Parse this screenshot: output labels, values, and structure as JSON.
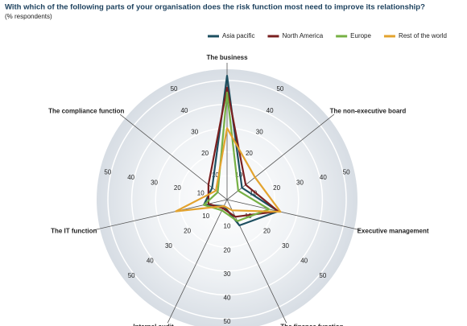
{
  "chart_data": {
    "type": "radar",
    "title": "With which of the following parts of your organisation does the risk function most need to improve its relationship?",
    "subtitle": "(% respondents)",
    "categories": [
      "The business",
      "The non-executive board",
      "Executive management",
      "The finance function",
      "Internal audit",
      "The IT function",
      "The compliance function"
    ],
    "series": [
      {
        "name": "Asia pacific",
        "color": "#1d4f60",
        "values": [
          52,
          8,
          22,
          12,
          3,
          10,
          8
        ]
      },
      {
        "name": "North America",
        "color": "#7a1f1f",
        "values": [
          47,
          10,
          22,
          8,
          4,
          8,
          10
        ]
      },
      {
        "name": "Europe",
        "color": "#76b043",
        "values": [
          45,
          6,
          18,
          10,
          5,
          10,
          5
        ]
      },
      {
        "name": "Rest of the world",
        "color": "#e3a32e",
        "values": [
          30,
          15,
          23,
          5,
          3,
          22,
          6
        ]
      }
    ],
    "rlim": [
      0,
      50
    ],
    "rticks": [
      10,
      20,
      30,
      40,
      50
    ],
    "grid": true
  }
}
